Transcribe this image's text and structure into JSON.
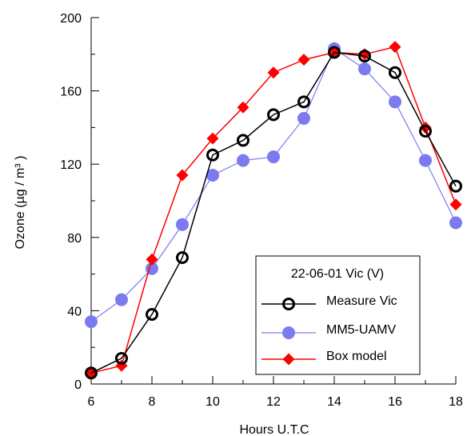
{
  "chart_data": {
    "type": "line",
    "xlabel": "Hours U.T.C",
    "ylabel": "Ozone (µg / m³ )",
    "xlim": [
      6,
      18
    ],
    "ylim": [
      0,
      200
    ],
    "x_ticks": [
      6,
      8,
      10,
      12,
      14,
      16,
      18
    ],
    "y_ticks": [
      0,
      40,
      80,
      120,
      160,
      200
    ],
    "x_ticks_text": [
      "6",
      "8",
      "10",
      "12",
      "14",
      "16",
      "18"
    ],
    "y_ticks_text": [
      "0",
      "40",
      "80",
      "120",
      "160",
      "200"
    ],
    "grid": false,
    "legend": {
      "title": "22-06-01 Vic (V)",
      "placement": "bottom-right"
    },
    "series": [
      {
        "name": "Measure Vic",
        "color": "#000000",
        "marker": "open-circle",
        "x": [
          6,
          7,
          8,
          9,
          10,
          11,
          12,
          13,
          14,
          15,
          16,
          17,
          18
        ],
        "values": [
          6,
          14,
          38,
          69,
          125,
          133,
          147,
          154,
          181,
          179,
          170,
          138,
          108
        ]
      },
      {
        "name": "MM5-UAMV",
        "color": "#7b7bf0",
        "marker": "filled-circle",
        "x": [
          6,
          7,
          8,
          9,
          10,
          11,
          12,
          13,
          14,
          15,
          16,
          17,
          18
        ],
        "values": [
          34,
          46,
          63,
          87,
          114,
          122,
          124,
          145,
          183,
          172,
          154,
          122,
          88
        ]
      },
      {
        "name": "Box model",
        "color": "#ff0000",
        "marker": "filled-diamond",
        "x": [
          6,
          7,
          8,
          9,
          10,
          11,
          12,
          13,
          14,
          15,
          16,
          17,
          18
        ],
        "values": [
          6,
          10,
          68,
          114,
          134,
          151,
          170,
          177,
          181,
          180,
          184,
          140,
          98
        ]
      }
    ]
  }
}
